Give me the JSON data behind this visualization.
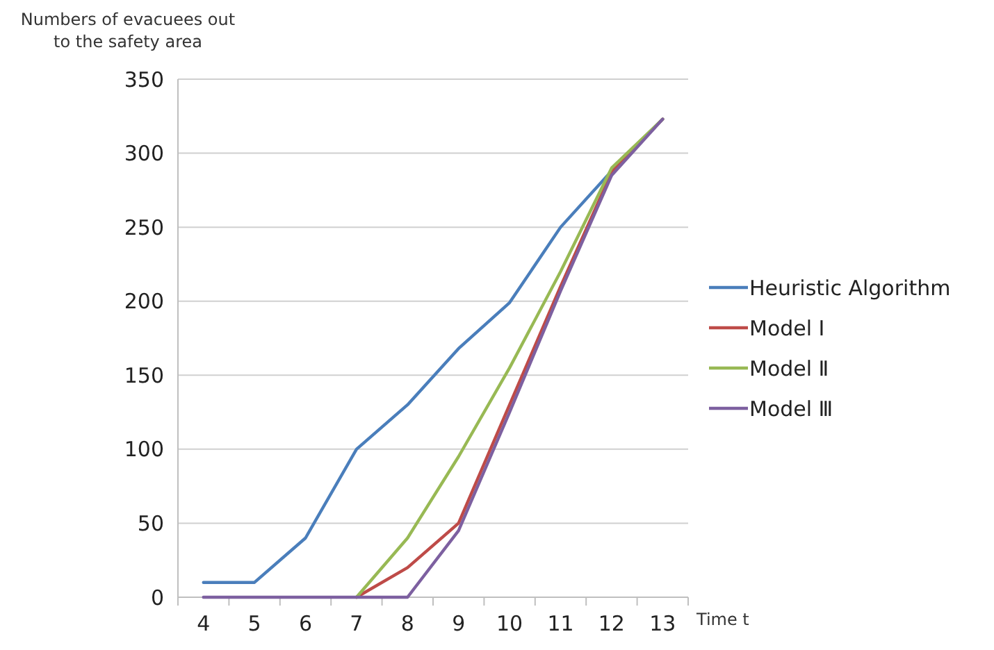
{
  "chart_data": {
    "type": "line",
    "ylabel": "Numbers of evacuees out to the safety area",
    "xlabel": "Time t",
    "categories": [
      "4",
      "5",
      "6",
      "7",
      "8",
      "9",
      "10",
      "11",
      "12",
      "13"
    ],
    "series": [
      {
        "name": "Heuristic Algorithm",
        "color": "#4a7ebb",
        "values": [
          10,
          10,
          40,
          100,
          130,
          168,
          199,
          250,
          288,
          323
        ]
      },
      {
        "name": "Model Ⅰ",
        "color": "#be4b48",
        "values": [
          null,
          null,
          null,
          0,
          20,
          50,
          130,
          210,
          287,
          323
        ]
      },
      {
        "name": "Model Ⅱ",
        "color": "#98b954",
        "values": [
          null,
          null,
          null,
          0,
          40,
          95,
          155,
          220,
          290,
          323
        ]
      },
      {
        "name": "Model Ⅲ",
        "color": "#7d60a0",
        "values": [
          0,
          0,
          0,
          0,
          0,
          45,
          125,
          207,
          285,
          323
        ]
      }
    ],
    "ylim": [
      0,
      350
    ],
    "yticks": [
      0,
      50,
      100,
      150,
      200,
      250,
      300,
      350
    ],
    "grid": "y",
    "legend": "right",
    "marker": "none",
    "line_style": "solid"
  }
}
